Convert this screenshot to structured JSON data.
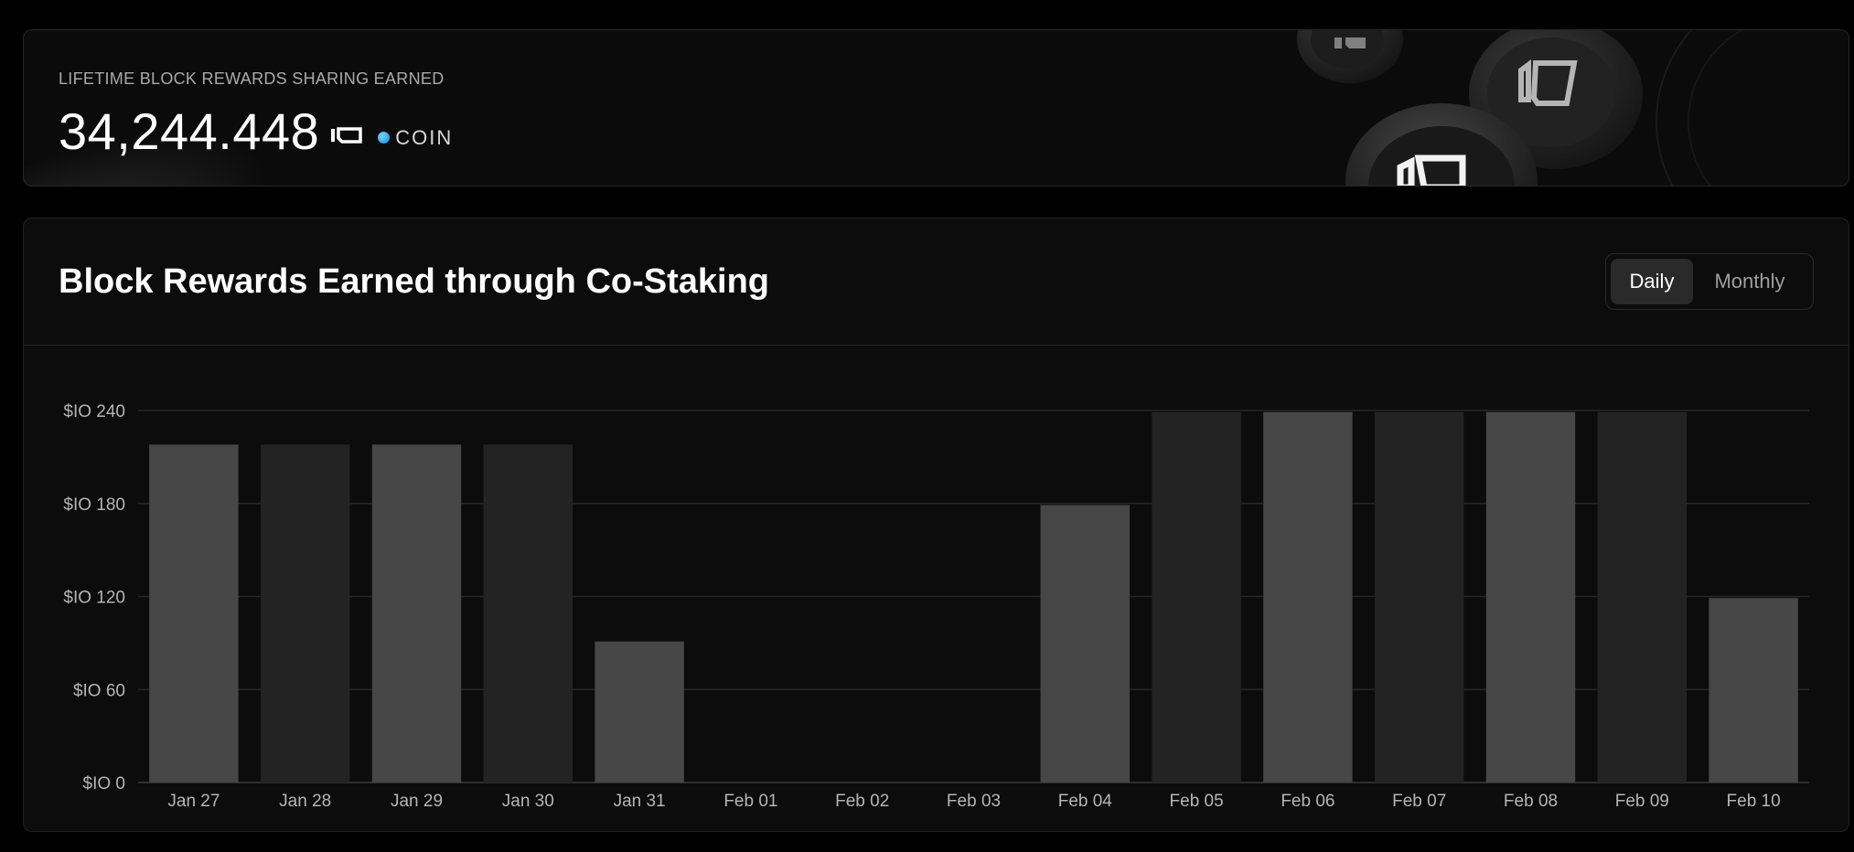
{
  "header": {
    "lifetime_label": "LIFETIME BLOCK REWARDS SHARING EARNED",
    "lifetime_value": "34,244.448",
    "coin_label": "COIN",
    "coin_dot_color": "#1a8fd8"
  },
  "chart_card": {
    "title": "Block Rewards Earned through Co-Staking",
    "toggle": {
      "daily_label": "Daily",
      "monthly_label": "Monthly",
      "selected": "Daily"
    }
  },
  "chart_data": {
    "type": "bar",
    "categories": [
      "Jan 27",
      "Jan 28",
      "Jan 29",
      "Jan 30",
      "Jan 31",
      "Feb 01",
      "Feb 02",
      "Feb 03",
      "Feb 04",
      "Feb 05",
      "Feb 06",
      "Feb 07",
      "Feb 08",
      "Feb 09",
      "Feb 10"
    ],
    "values": [
      218,
      218,
      218,
      218,
      91,
      0,
      0,
      0,
      179,
      239,
      239,
      239,
      239,
      239,
      119
    ],
    "ylim": [
      0,
      240
    ],
    "yticks": [
      0,
      60,
      120,
      180,
      240
    ],
    "ytick_labels": [
      "$IO 0",
      "$IO 60",
      "$IO 120",
      "$IO 180",
      "$IO 240"
    ],
    "grid": true,
    "bar_colors": [
      "#474747",
      "#232323"
    ]
  }
}
